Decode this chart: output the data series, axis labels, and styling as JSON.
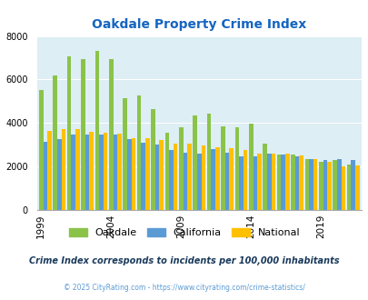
{
  "title": "Oakdale Property Crime Index",
  "years": [
    1999,
    2000,
    2001,
    2002,
    2003,
    2004,
    2005,
    2006,
    2007,
    2008,
    2009,
    2010,
    2011,
    2012,
    2013,
    2014,
    2015,
    2016,
    2017,
    2018,
    2019,
    2020,
    2021
  ],
  "oakdale": [
    5500,
    6200,
    7050,
    6950,
    7300,
    6950,
    5150,
    5250,
    4650,
    3550,
    3800,
    4350,
    4450,
    3850,
    3800,
    3950,
    3050,
    2550,
    2550,
    2350,
    2200,
    2300,
    2100
  ],
  "california": [
    3150,
    3250,
    3450,
    3450,
    3450,
    3450,
    3250,
    3100,
    3000,
    2750,
    2650,
    2600,
    2800,
    2650,
    2450,
    2450,
    2600,
    2550,
    2450,
    2350,
    2300,
    2350,
    2300
  ],
  "national": [
    3650,
    3700,
    3700,
    3600,
    3550,
    3500,
    3300,
    3300,
    3200,
    3050,
    3050,
    2950,
    2900,
    2850,
    2750,
    2600,
    2600,
    2600,
    2500,
    2350,
    2200,
    2000,
    2050
  ],
  "colors": {
    "oakdale": "#8BC34A",
    "california": "#5B9BD5",
    "national": "#FFC000"
  },
  "background_color": "#ddeef4",
  "ylim": [
    0,
    8000
  ],
  "yticks": [
    0,
    2000,
    4000,
    6000,
    8000
  ],
  "label_years": [
    1999,
    2004,
    2009,
    2014,
    2019
  ],
  "subtitle": "Crime Index corresponds to incidents per 100,000 inhabitants",
  "footer": "© 2025 CityRating.com - https://www.cityrating.com/crime-statistics/",
  "title_color": "#1565C0",
  "subtitle_color": "#1a3a5c",
  "footer_color": "#5B9BD5"
}
